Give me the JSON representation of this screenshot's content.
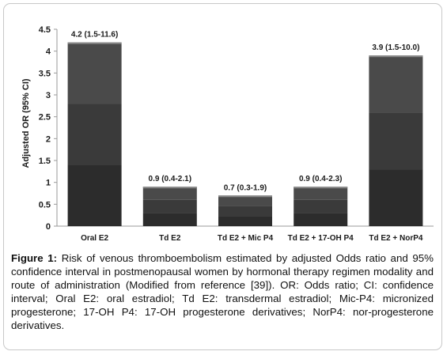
{
  "chart_data": {
    "type": "bar",
    "categories": [
      "Oral E2",
      "Td E2",
      "Td E2 + Mic P4",
      "Td E2 + 17-OH P4",
      "Td E2 + NorP4"
    ],
    "values": [
      4.2,
      0.9,
      0.7,
      0.9,
      3.9
    ],
    "data_labels": [
      "4.2 (1.5-11.6)",
      "0.9 (0.4-2.1)",
      "0.7 (0.3-1.9)",
      "0.9 (0.4-2.3)",
      "3.9 (1.5-10.0)"
    ],
    "ylabel": "Adjusted OR (95% CI)",
    "xlabel": "",
    "ylim": [
      0,
      4.5
    ],
    "yticks": [
      "0",
      "0.5",
      "1",
      "1.5",
      "2",
      "2.5",
      "3",
      "3.5",
      "4",
      "4.5"
    ],
    "grid": false,
    "bar_colors": [
      "#4a4a4a",
      "#3a3a3a",
      "#2c2c2c"
    ]
  },
  "caption": {
    "label": "Figure 1:",
    "text": " Risk of venous thromboembolism estimated by adjusted Odds ratio and 95% confidence interval in postmenopausal women by hormonal therapy regimen modality and route of administration (Modified from reference [39]). OR: Odds ratio; CI: confidence interval; Oral E2: oral estradiol; Td E2: transdermal estradiol; Mic-P4: micronized progesterone; 17-OH P4: 17-OH progesterone derivatives; NorP4: nor-progesterone derivatives."
  }
}
